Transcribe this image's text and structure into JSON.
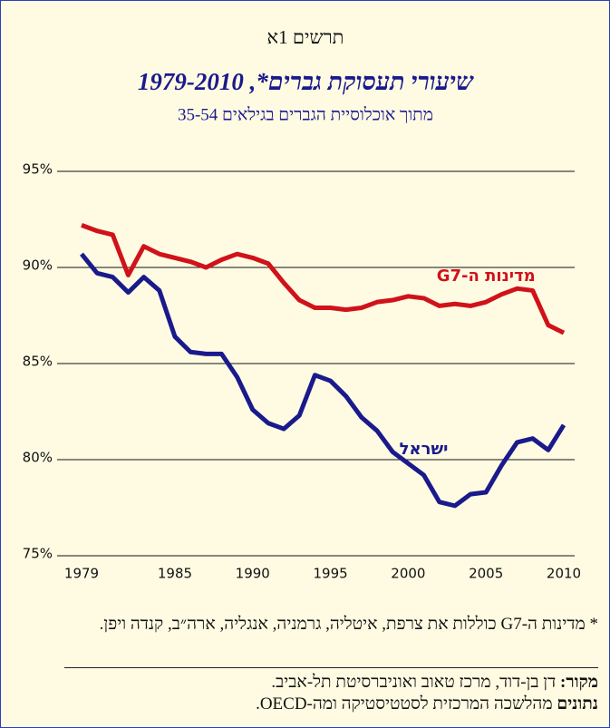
{
  "chart_data": {
    "type": "line",
    "figure": "תרשים 1א",
    "title": "שיעורי תעסוקת גברים*, 1979-2010",
    "subtitle": "מתוך אוכלוסיית הגברים בגילאים 35-54",
    "x": [
      1979,
      1980,
      1981,
      1982,
      1983,
      1984,
      1985,
      1986,
      1987,
      1988,
      1989,
      1990,
      1991,
      1992,
      1993,
      1994,
      1995,
      1996,
      1997,
      1998,
      1999,
      2000,
      2001,
      2002,
      2003,
      2004,
      2005,
      2006,
      2007,
      2008,
      2009,
      2010
    ],
    "series": [
      {
        "name": "מדינות ה-G7",
        "color": "#d0121b",
        "values": [
          92.2,
          91.9,
          91.7,
          89.6,
          91.1,
          90.7,
          90.5,
          90.3,
          90.0,
          90.4,
          90.7,
          90.5,
          90.2,
          89.2,
          88.3,
          87.9,
          87.9,
          87.8,
          87.9,
          88.2,
          88.3,
          88.5,
          88.4,
          88.0,
          88.1,
          88.0,
          88.2,
          88.6,
          88.9,
          88.8,
          87.0,
          86.6
        ]
      },
      {
        "name": "ישראל",
        "color": "#1a1a8c",
        "values": [
          90.7,
          89.7,
          89.5,
          88.7,
          89.5,
          88.8,
          86.4,
          85.6,
          85.5,
          85.5,
          84.3,
          82.6,
          81.9,
          81.6,
          82.3,
          84.4,
          84.1,
          83.3,
          82.2,
          81.5,
          80.4,
          79.8,
          79.2,
          77.8,
          77.6,
          78.2,
          78.3,
          79.7,
          80.9,
          81.1,
          80.5,
          81.8
        ]
      }
    ],
    "xlim": [
      1979,
      2010
    ],
    "xticks": [
      1979,
      1985,
      1990,
      1995,
      2000,
      2005,
      2010
    ],
    "ylim": [
      75,
      95
    ],
    "yticks": [
      {
        "value": 75,
        "label": "75%"
      },
      {
        "value": 80,
        "label": "80%"
      },
      {
        "value": 85,
        "label": "85%"
      },
      {
        "value": 90,
        "label": "90%"
      },
      {
        "value": 95,
        "label": "95%"
      }
    ],
    "grid": true
  },
  "footnote": "* מדינות ה-G7 כוללות את צרפת, איטליה, גרמניה, אנגליה, ארה״ב, קנדה ויפן.",
  "source": {
    "label": "מקור:",
    "text": "דן בן-דוד, מרכז טאוב ואוניברסיטת תל-אביב."
  },
  "data_source": {
    "label": "נתונים",
    "text": "מהלשכה המרכזית לסטטיסטיקה ומה-OECD."
  }
}
